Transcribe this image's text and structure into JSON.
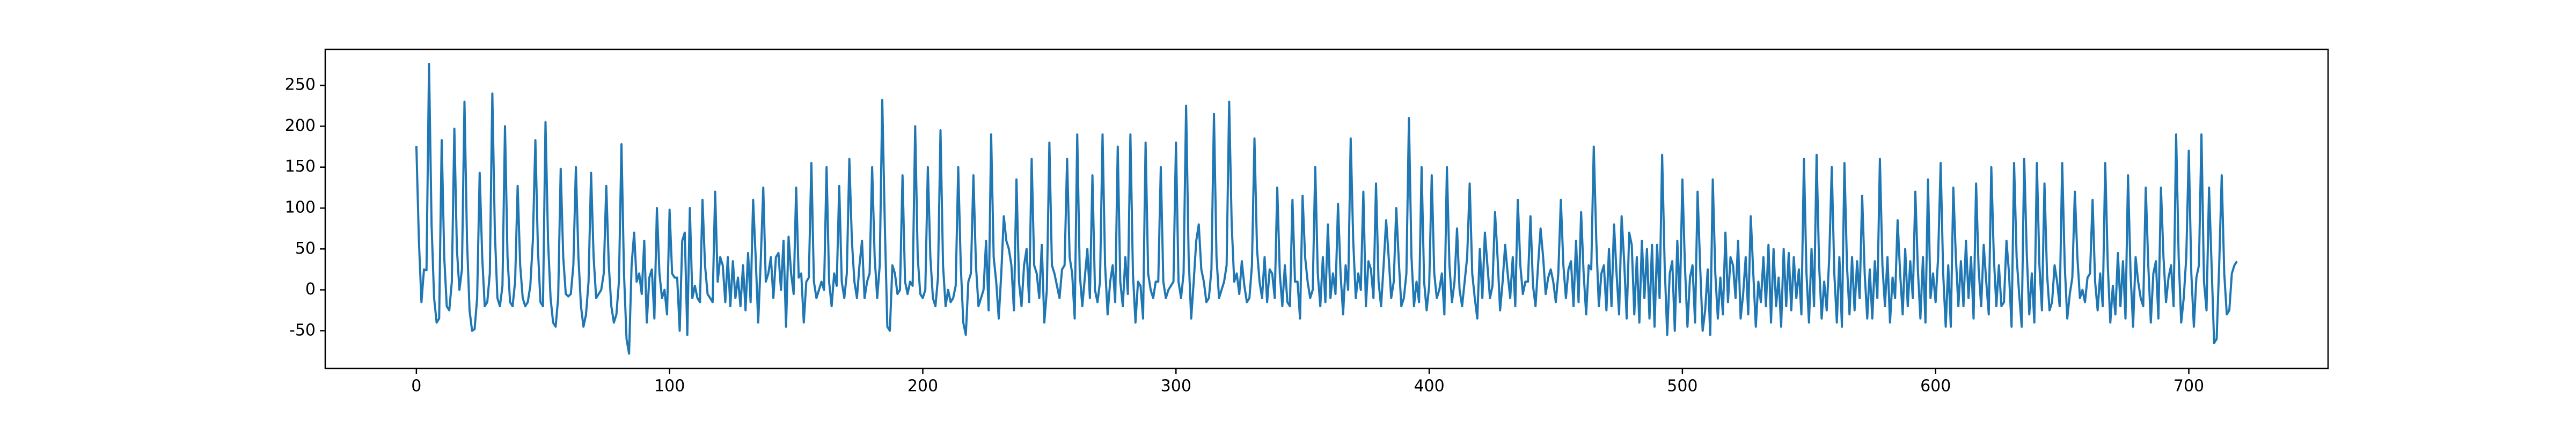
{
  "chart_data": {
    "type": "line",
    "color": "#1f77b4",
    "values": [
      176,
      60,
      -15,
      25,
      24,
      276,
      80,
      -10,
      -40,
      -35,
      183,
      40,
      -20,
      -25,
      10,
      197,
      50,
      0,
      25,
      230,
      60,
      -25,
      -50,
      -48,
      -10,
      143,
      40,
      -20,
      -15,
      20,
      240,
      70,
      -10,
      -20,
      5,
      200,
      40,
      -15,
      -20,
      10,
      127,
      30,
      -10,
      -20,
      -15,
      5,
      60,
      183,
      50,
      -15,
      -20,
      205,
      60,
      -10,
      -40,
      -45,
      -10,
      148,
      40,
      -5,
      -8,
      -5,
      30,
      150,
      40,
      -20,
      -45,
      -30,
      10,
      143,
      40,
      -10,
      -5,
      0,
      20,
      127,
      30,
      -20,
      -40,
      -30,
      10,
      178,
      20,
      -60,
      -78,
      30,
      70,
      10,
      20,
      -5,
      60,
      -40,
      15,
      25,
      -35,
      100,
      20,
      -10,
      0,
      -30,
      98,
      20,
      15,
      15,
      -50,
      60,
      70,
      -55,
      100,
      -10,
      5,
      -10,
      -15,
      110,
      30,
      -5,
      -10,
      -15,
      120,
      10,
      40,
      30,
      -15,
      40,
      -20,
      35,
      -10,
      15,
      -20,
      30,
      -25,
      45,
      -15,
      110,
      40,
      -40,
      35,
      125,
      10,
      20,
      40,
      -10,
      40,
      45,
      0,
      60,
      -45,
      65,
      20,
      -5,
      125,
      15,
      20,
      -40,
      10,
      15,
      155,
      10,
      -10,
      0,
      10,
      0,
      150,
      10,
      -20,
      20,
      5,
      127,
      10,
      -10,
      20,
      160,
      60,
      10,
      -10,
      30,
      60,
      -10,
      10,
      20,
      150,
      40,
      -10,
      30,
      232,
      80,
      -45,
      -50,
      30,
      20,
      -5,
      0,
      140,
      10,
      -5,
      10,
      5,
      200,
      40,
      -5,
      -10,
      0,
      150,
      40,
      -10,
      -20,
      15,
      195,
      30,
      -20,
      0,
      -15,
      -10,
      5,
      150,
      30,
      -40,
      -55,
      10,
      20,
      140,
      30,
      -20,
      -10,
      0,
      60,
      -25,
      190,
      40,
      10,
      -35,
      20,
      90,
      60,
      50,
      30,
      -25,
      135,
      10,
      -20,
      30,
      50,
      -15,
      160,
      30,
      20,
      -10,
      55,
      -40,
      0,
      180,
      30,
      20,
      5,
      -10,
      25,
      30,
      160,
      40,
      20,
      -35,
      190,
      20,
      -20,
      15,
      50,
      -10,
      140,
      0,
      -15,
      10,
      190,
      30,
      -30,
      10,
      30,
      -15,
      175,
      10,
      -20,
      40,
      -5,
      190,
      20,
      -40,
      10,
      5,
      -35,
      180,
      20,
      0,
      -10,
      10,
      10,
      150,
      10,
      -10,
      0,
      5,
      10,
      180,
      10,
      -10,
      20,
      225,
      40,
      -35,
      10,
      60,
      80,
      25,
      10,
      -15,
      -10,
      25,
      215,
      40,
      -10,
      0,
      10,
      30,
      230,
      80,
      10,
      20,
      -5,
      35,
      5,
      -15,
      -10,
      30,
      185,
      50,
      10,
      -10,
      40,
      -15,
      25,
      20,
      -10,
      125,
      20,
      -20,
      30,
      -15,
      -20,
      110,
      10,
      10,
      -35,
      115,
      40,
      10,
      -10,
      0,
      150,
      20,
      -20,
      40,
      -15,
      80,
      -10,
      20,
      -5,
      105,
      20,
      -30,
      30,
      0,
      185,
      60,
      -10,
      20,
      0,
      120,
      -20,
      35,
      25,
      -10,
      130,
      10,
      -20,
      30,
      85,
      40,
      -10,
      10,
      100,
      35,
      -20,
      -10,
      20,
      210,
      40,
      -20,
      10,
      -15,
      150,
      10,
      -25,
      5,
      140,
      20,
      -10,
      0,
      20,
      -30,
      150,
      30,
      -15,
      10,
      75,
      0,
      -20,
      10,
      40,
      130,
      20,
      -10,
      -35,
      50,
      -10,
      70,
      30,
      -10,
      5,
      95,
      40,
      -25,
      10,
      55,
      20,
      -10,
      40,
      -20,
      110,
      30,
      -5,
      10,
      10,
      90,
      5,
      -20,
      30,
      75,
      40,
      -5,
      15,
      25,
      10,
      -15,
      20,
      110,
      30,
      -10,
      25,
      35,
      -20,
      60,
      -15,
      95,
      20,
      -30,
      30,
      25,
      175,
      60,
      -20,
      20,
      30,
      -25,
      50,
      -20,
      80,
      20,
      -30,
      90,
      35,
      -35,
      70,
      55,
      -30,
      40,
      -40,
      60,
      -10,
      50,
      -35,
      55,
      -45,
      55,
      -10,
      165,
      30,
      -55,
      20,
      35,
      -50,
      60,
      -15,
      135,
      30,
      -45,
      15,
      30,
      -40,
      120,
      30,
      -50,
      -25,
      25,
      -55,
      135,
      20,
      -35,
      15,
      -30,
      70,
      -15,
      40,
      30,
      -10,
      60,
      -35,
      -5,
      40,
      -30,
      90,
      20,
      -45,
      10,
      -15,
      40,
      -20,
      55,
      -40,
      50,
      -20,
      15,
      -45,
      50,
      -20,
      45,
      -25,
      40,
      -10,
      25,
      -30,
      160,
      20,
      -40,
      50,
      -20,
      165,
      30,
      -35,
      10,
      -25,
      40,
      150,
      20,
      -40,
      40,
      -45,
      155,
      30,
      -30,
      40,
      -25,
      35,
      -10,
      115,
      20,
      -35,
      25,
      -35,
      35,
      -10,
      160,
      30,
      -20,
      40,
      -40,
      15,
      -10,
      85,
      20,
      -30,
      50,
      -20,
      35,
      -10,
      120,
      25,
      -35,
      40,
      -40,
      135,
      -10,
      20,
      -15,
      40,
      155,
      20,
      -45,
      30,
      -45,
      125,
      40,
      -20,
      35,
      -20,
      60,
      -10,
      40,
      -35,
      130,
      25,
      -20,
      55,
      10,
      -30,
      150,
      40,
      -20,
      30,
      -20,
      -15,
      60,
      20,
      -45,
      155,
      40,
      -5,
      -45,
      160,
      45,
      -30,
      20,
      -40,
      155,
      30,
      -25,
      130,
      20,
      -25,
      -15,
      30,
      10,
      -20,
      155,
      30,
      -35,
      -5,
      15,
      120,
      40,
      -10,
      0,
      -15,
      15,
      20,
      110,
      10,
      -25,
      20,
      -20,
      155,
      30,
      -40,
      5,
      -30,
      45,
      -20,
      35,
      -35,
      140,
      20,
      -45,
      40,
      10,
      -10,
      -20,
      125,
      30,
      -40,
      20,
      35,
      -35,
      125,
      40,
      -15,
      15,
      30,
      -20,
      190,
      40,
      -40,
      -10,
      40,
      170,
      20,
      -45,
      15,
      30,
      190,
      10,
      -25,
      125,
      30,
      -65,
      -60,
      30,
      140,
      20,
      -30,
      -25,
      20,
      30,
      35
    ],
    "xlim": [
      -36,
      755
    ],
    "xticks": [
      0,
      100,
      200,
      300,
      400,
      500,
      600,
      700
    ],
    "ylim": [
      -96,
      294
    ],
    "yticks": [
      -50,
      0,
      50,
      100,
      150,
      200,
      250
    ]
  }
}
